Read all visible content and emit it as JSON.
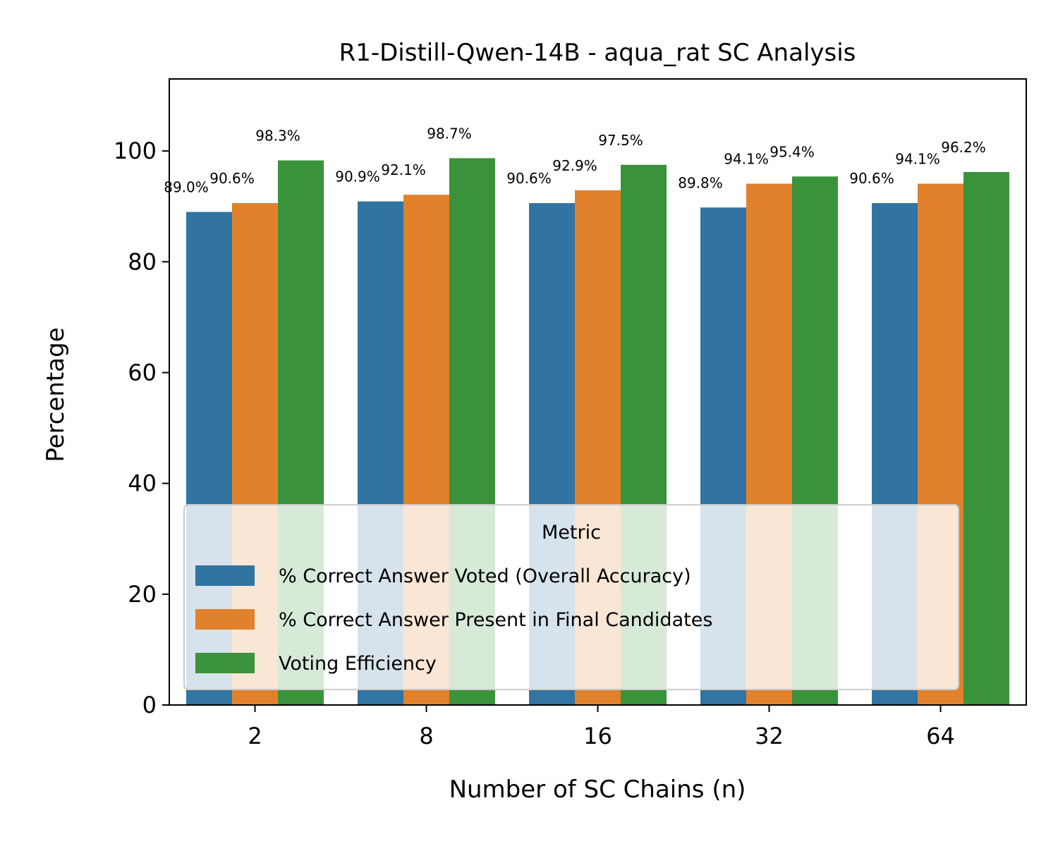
{
  "chart_data": {
    "type": "bar",
    "title": "R1-Distill-Qwen-14B - aqua_rat SC Analysis",
    "xlabel": "Number of SC Chains (n)",
    "ylabel": "Percentage",
    "categories": [
      "2",
      "8",
      "16",
      "32",
      "64"
    ],
    "series": [
      {
        "name": "% Correct Answer Voted (Overall Accuracy)",
        "color": "#3274a1",
        "values": [
          89.0,
          90.9,
          90.6,
          89.8,
          90.6
        ],
        "labels": [
          "89.0%",
          "90.9%",
          "90.6%",
          "89.8%",
          "90.6%"
        ]
      },
      {
        "name": "% Correct Answer Present in Final Candidates",
        "color": "#e1812c",
        "values": [
          90.6,
          92.1,
          92.9,
          94.1,
          94.1
        ],
        "labels": [
          "90.6%",
          "92.1%",
          "92.9%",
          "94.1%",
          "94.1%"
        ]
      },
      {
        "name": "Voting Efficiency",
        "color": "#3a923a",
        "values": [
          98.3,
          98.7,
          97.5,
          95.4,
          96.2
        ],
        "labels": [
          "98.3%",
          "98.7%",
          "97.5%",
          "95.4%",
          "96.2%"
        ]
      }
    ],
    "ylim": [
      0,
      113
    ],
    "yticks": [
      0,
      20,
      40,
      60,
      80,
      100
    ],
    "grid": false,
    "legend": {
      "title": "Metric",
      "position": "lower-center"
    }
  }
}
